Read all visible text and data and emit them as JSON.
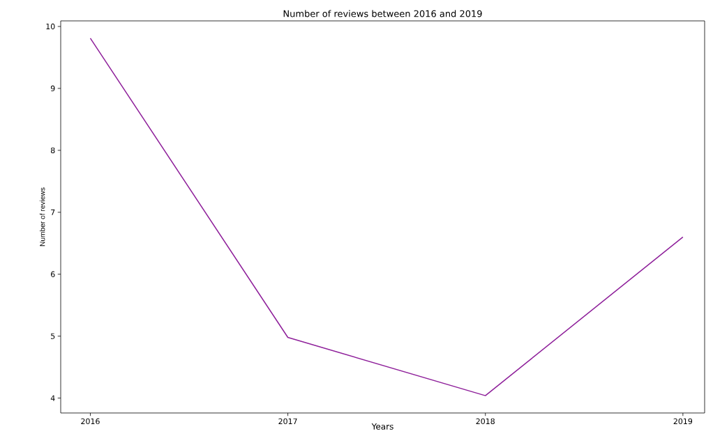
{
  "chart_data": {
    "type": "line",
    "title": "Number of reviews between 2016 and 2019",
    "xlabel": "Years",
    "ylabel": "Number of reviews",
    "x": [
      2016,
      2017,
      2018,
      2019
    ],
    "series": [
      {
        "color": "#8e1f9a",
        "values": [
          9.81,
          4.98,
          4.04,
          6.6
        ]
      }
    ],
    "xlim": [
      2015.85,
      2019.11
    ],
    "ylim": [
      3.76,
      10.09
    ],
    "xticks": [
      2016,
      2017,
      2018,
      2019
    ],
    "yticks": [
      4,
      5,
      6,
      7,
      8,
      9,
      10
    ],
    "marker": "none",
    "line_style": "solid"
  }
}
